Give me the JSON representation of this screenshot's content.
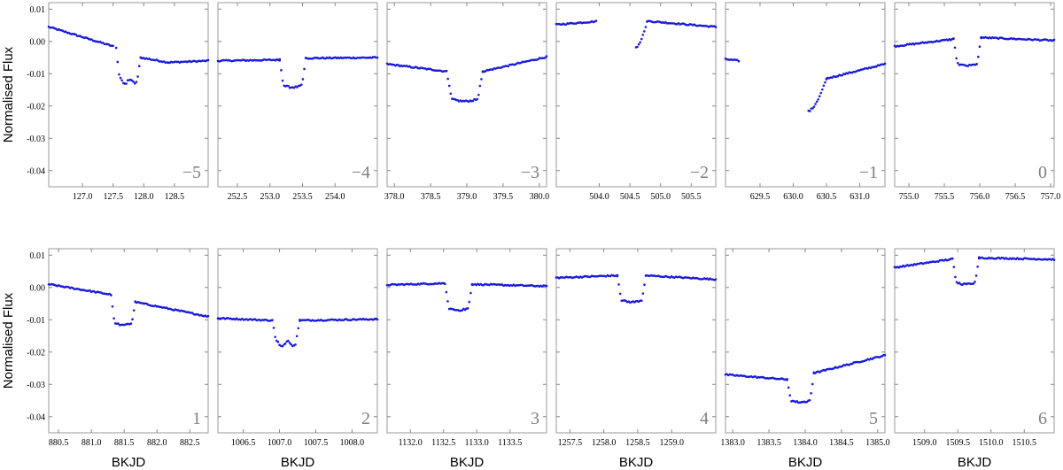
{
  "chart_data": {
    "type": "scatter",
    "title": "",
    "ylabel": "Normalised Flux",
    "xlabel": "BKJD",
    "ylim": [
      -0.045,
      0.012
    ],
    "y_ticks": [
      0.01,
      0.0,
      -0.01,
      -0.02,
      -0.03,
      -0.04
    ],
    "y_tick_labels": [
      "0.01",
      "0.00",
      "-0.01",
      "-0.02",
      "-0.03",
      "-0.04"
    ],
    "marker_color": "#1a1adb",
    "panel_label_color": "#808080",
    "grid": false,
    "panels": [
      {
        "label": "−5",
        "xlim": [
          126.45,
          129.05
        ],
        "xticks": [
          127.0,
          127.5,
          128.0,
          128.5
        ],
        "xtick_labels": [
          "127.0",
          "127.5",
          "128.0",
          "128.5"
        ],
        "segments": [
          {
            "x0": 126.45,
            "y0": 0.0045,
            "x1": 127.5,
            "y1": -0.0015
          }
        ],
        "transit": {
          "t0": 127.55,
          "t1": 127.95,
          "tc": 127.78,
          "pre": -0.002,
          "post": -0.005,
          "depth": -0.0125,
          "shape": "bumpy"
        },
        "after": [
          {
            "x0": 127.95,
            "y0": -0.005,
            "x1": 128.4,
            "y1": -0.0065
          },
          {
            "x0": 128.4,
            "y0": -0.0065,
            "x1": 129.05,
            "y1": -0.006
          }
        ]
      },
      {
        "label": "−4",
        "xlim": [
          252.2,
          254.65
        ],
        "xticks": [
          252.5,
          253.0,
          253.5,
          254.0
        ],
        "xtick_labels": [
          "252.5",
          "253.0",
          "253.5",
          "254.0"
        ],
        "segments": [
          {
            "x0": 252.2,
            "y0": -0.006,
            "x1": 253.15,
            "y1": -0.0057
          }
        ],
        "transit": {
          "t0": 253.15,
          "t1": 253.55,
          "tc": 253.35,
          "pre": -0.0057,
          "post": -0.0052,
          "depth": -0.0142
        },
        "after": [
          {
            "x0": 253.55,
            "y0": -0.0052,
            "x1": 254.65,
            "y1": -0.005
          }
        ]
      },
      {
        "label": "−3",
        "xlim": [
          377.9,
          380.1
        ],
        "xticks": [
          378.0,
          378.5,
          379.0,
          379.5,
          380.0
        ],
        "xtick_labels": [
          "378.0",
          "378.5",
          "379.0",
          "379.5",
          "380.0"
        ],
        "segments": [
          {
            "x0": 377.9,
            "y0": -0.007,
            "x1": 378.72,
            "y1": -0.0093
          }
        ],
        "transit": {
          "t0": 378.72,
          "t1": 379.22,
          "tc": 378.97,
          "pre": -0.0093,
          "post": -0.0093,
          "depth": -0.0185
        },
        "after": [
          {
            "x0": 379.22,
            "y0": -0.0093,
            "x1": 380.1,
            "y1": -0.0048
          }
        ]
      },
      {
        "label": "−2",
        "xlim": [
          503.3,
          505.9
        ],
        "xticks": [
          504.0,
          504.5,
          505.0,
          505.5
        ],
        "xtick_labels": [
          "504.0",
          "504.5",
          "505.0",
          "505.5"
        ],
        "segments": [
          {
            "x0": 503.3,
            "y0": 0.0052,
            "x1": 503.95,
            "y1": 0.0062
          }
        ],
        "transit": {
          "t0": 504.6,
          "t1": 504.78,
          "tc": 504.6,
          "pre": -0.0018,
          "post": 0.006,
          "depth": -0.0018,
          "shape": "egress"
        },
        "after": [
          {
            "x0": 504.78,
            "y0": 0.0063,
            "x1": 505.9,
            "y1": 0.0045
          }
        ]
      },
      {
        "label": "−1",
        "xlim": [
          628.98,
          631.38
        ],
        "xticks": [
          629.5,
          630.0,
          630.5,
          631.0
        ],
        "xtick_labels": [
          "629.5",
          "630.0",
          "630.5",
          "631.0"
        ],
        "segments": [
          {
            "x0": 628.98,
            "y0": -0.0055,
            "x1": 629.18,
            "y1": -0.006
          }
        ],
        "transit": {
          "t0": 630.23,
          "t1": 630.5,
          "tc": 630.23,
          "pre": -0.0215,
          "post": -0.0115,
          "depth": -0.0215,
          "shape": "egress"
        },
        "after": [
          {
            "x0": 630.5,
            "y0": -0.0115,
            "x1": 631.38,
            "y1": -0.007
          }
        ]
      },
      {
        "label": "0",
        "xlim": [
          754.8,
          757.05
        ],
        "xticks": [
          755.0,
          755.5,
          756.0,
          756.5,
          757.0
        ],
        "xtick_labels": [
          "755.0",
          "755.5",
          "756.0",
          "756.5",
          "757.0"
        ],
        "segments": [
          {
            "x0": 754.8,
            "y0": -0.0015,
            "x1": 755.63,
            "y1": 0.0007
          }
        ],
        "transit": {
          "t0": 755.63,
          "t1": 756.02,
          "tc": 755.85,
          "pre": 0.0007,
          "post": 0.0012,
          "depth": -0.0075
        },
        "after": [
          {
            "x0": 756.02,
            "y0": 0.0012,
            "x1": 757.05,
            "y1": 0.0003
          }
        ]
      },
      {
        "label": "1",
        "xlim": [
          880.35,
          882.78
        ],
        "xticks": [
          880.5,
          881.0,
          881.5,
          882.0,
          882.5
        ],
        "xtick_labels": [
          "880.5",
          "881.0",
          "881.5",
          "882.0",
          "882.5"
        ],
        "segments": [
          {
            "x0": 880.35,
            "y0": 0.001,
            "x1": 881.3,
            "y1": -0.0022
          }
        ],
        "transit": {
          "t0": 881.3,
          "t1": 881.67,
          "tc": 881.5,
          "pre": -0.0022,
          "post": -0.0045,
          "depth": -0.0115
        },
        "after": [
          {
            "x0": 881.67,
            "y0": -0.0045,
            "x1": 882.78,
            "y1": -0.009
          }
        ]
      },
      {
        "label": "2",
        "xlim": [
          1006.15,
          1008.35
        ],
        "xticks": [
          1006.5,
          1007.0,
          1007.5,
          1008.0
        ],
        "xtick_labels": [
          "1006.5",
          "1007.0",
          "1007.5",
          "1008.0"
        ],
        "segments": [
          {
            "x0": 1006.15,
            "y0": -0.0095,
            "x1": 1006.9,
            "y1": -0.0102
          }
        ],
        "transit": {
          "t0": 1006.9,
          "t1": 1007.28,
          "tc": 1007.1,
          "pre": -0.0102,
          "post": -0.0102,
          "depth": -0.0175,
          "shape": "bumpy"
        },
        "after": [
          {
            "x0": 1007.28,
            "y0": -0.0102,
            "x1": 1008.35,
            "y1": -0.0098
          }
        ]
      },
      {
        "label": "3",
        "xlim": [
          1131.65,
          1134.05
        ],
        "xticks": [
          1132.0,
          1132.5,
          1133.0,
          1133.5
        ],
        "xtick_labels": [
          "1132.0",
          "1132.5",
          "1133.0",
          "1133.5"
        ],
        "segments": [
          {
            "x0": 1131.65,
            "y0": 0.0008,
            "x1": 1132.52,
            "y1": 0.0013
          }
        ],
        "transit": {
          "t0": 1132.52,
          "t1": 1132.93,
          "tc": 1132.72,
          "pre": 0.0013,
          "post": 0.001,
          "depth": -0.007
        },
        "after": [
          {
            "x0": 1132.93,
            "y0": 0.001,
            "x1": 1134.05,
            "y1": 0.0004
          }
        ]
      },
      {
        "label": "4",
        "xlim": [
          1257.3,
          1259.65
        ],
        "xticks": [
          1257.5,
          1258.0,
          1258.5,
          1259.0
        ],
        "xtick_labels": [
          "1257.5",
          "1258.0",
          "1258.5",
          "1259.0"
        ],
        "segments": [
          {
            "x0": 1257.3,
            "y0": 0.003,
            "x1": 1258.2,
            "y1": 0.0037
          }
        ],
        "transit": {
          "t0": 1258.2,
          "t1": 1258.62,
          "tc": 1258.41,
          "pre": 0.0037,
          "post": 0.0037,
          "depth": -0.0045
        },
        "after": [
          {
            "x0": 1258.62,
            "y0": 0.0037,
            "x1": 1259.65,
            "y1": 0.0025
          }
        ]
      },
      {
        "label": "5",
        "xlim": [
          1382.9,
          1385.1
        ],
        "xticks": [
          1383.0,
          1383.5,
          1384.0,
          1384.5,
          1385.0
        ],
        "xtick_labels": [
          "1383.0",
          "1383.5",
          "1384.0",
          "1384.5",
          "1385.0"
        ],
        "segments": [
          {
            "x0": 1382.9,
            "y0": -0.027,
            "x1": 1383.75,
            "y1": -0.0285
          }
        ],
        "transit": {
          "t0": 1383.75,
          "t1": 1384.12,
          "tc": 1383.95,
          "pre": -0.0285,
          "post": -0.0265,
          "depth": -0.0355
        },
        "after": [
          {
            "x0": 1384.12,
            "y0": -0.0265,
            "x1": 1385.1,
            "y1": -0.021
          }
        ]
      },
      {
        "label": "6",
        "xlim": [
          1508.55,
          1510.95
        ],
        "xticks": [
          1509.0,
          1509.5,
          1510.0,
          1510.5
        ],
        "xtick_labels": [
          "1509.0",
          "1509.5",
          "1510.0",
          "1510.5"
        ],
        "segments": [
          {
            "x0": 1508.55,
            "y0": 0.0062,
            "x1": 1509.42,
            "y1": 0.0088
          }
        ],
        "transit": {
          "t0": 1509.42,
          "t1": 1509.82,
          "tc": 1509.62,
          "pre": 0.0088,
          "post": 0.0092,
          "depth": 0.001
        },
        "after": [
          {
            "x0": 1509.82,
            "y0": 0.0092,
            "x1": 1510.95,
            "y1": 0.0087
          }
        ]
      }
    ]
  }
}
